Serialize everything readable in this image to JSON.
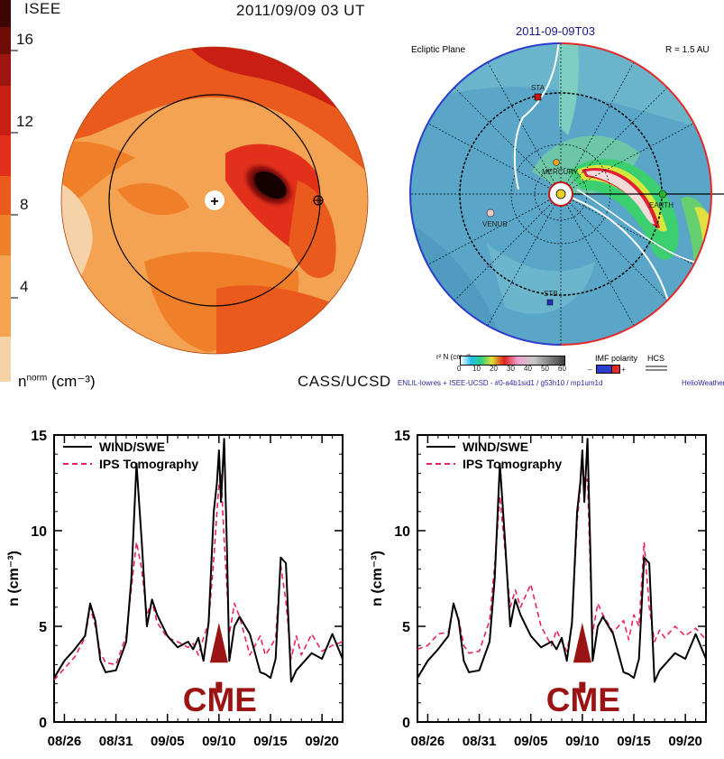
{
  "isee_panel": {
    "header_left": "ISEE",
    "header_right": "2011/09/09 03 UT",
    "colorbar_ticks": [
      "16",
      "12",
      "8",
      "4"
    ],
    "colorbar_label": "n",
    "colorbar_label_sup": "norm",
    "colorbar_unit": "(cm⁻³)",
    "credit": "CASS/UCSD",
    "colors": [
      "#f6d2a8",
      "#f4a352",
      "#f07f2a",
      "#ea5a1c",
      "#e2301a",
      "#c81e14",
      "#9e1410",
      "#6e0c08",
      "#3c0604",
      "#140100"
    ]
  },
  "enlil_panel": {
    "title": "2011-09-09T03",
    "plane_label": "Ecliptic Plane",
    "radius_label": "R = 1.5 AU",
    "bodies": [
      "STA",
      "MERCURY",
      "VENUS",
      "EARTH",
      "STB"
    ],
    "density_label": "r² N (cm⁻³)",
    "density_ticks": [
      "0",
      "10",
      "20",
      "30",
      "40",
      "50",
      "60"
    ],
    "imf_label": "IMF polarity",
    "imf_minus": "–",
    "imf_plus": "+",
    "hcs_label": "HCS",
    "footer_left": "ENLIL-lowres + ISEE-UCSD - #0-a4b1sid1 / g53h10 / mp1um1d",
    "footer_right": "HelioWeather"
  },
  "chart_data": [
    {
      "type": "line",
      "title": "",
      "xlabel": "",
      "ylabel": "n (cm⁻³)",
      "ylim": [
        0,
        15
      ],
      "xlim": [
        0,
        28
      ],
      "yticks": [
        "0",
        "5",
        "10",
        "15"
      ],
      "xtick_positions": [
        1,
        6,
        11,
        16,
        21,
        26
      ],
      "xtick_labels": [
        "08/26",
        "08/31",
        "09/05",
        "09/10",
        "09/15",
        "09/20"
      ],
      "annotation": "CME",
      "annotation_x": 16,
      "series": [
        {
          "name": "WIND/SWE",
          "color": "#000000",
          "style": "solid",
          "x": [
            0,
            1,
            2,
            3,
            3.5,
            4,
            4.5,
            5,
            6,
            7,
            7.5,
            8,
            8.5,
            9,
            9.5,
            10,
            11,
            12,
            13,
            13.5,
            14,
            14.5,
            15,
            15.5,
            15.8,
            16,
            16.2,
            16.5,
            16.8,
            17,
            17.2,
            17.5,
            18,
            19,
            20,
            20.5,
            21,
            21.5,
            22,
            22.5,
            23,
            23.5,
            24,
            25,
            26,
            27,
            28
          ],
          "values": [
            2.3,
            3.2,
            3.8,
            4.5,
            6.2,
            5.3,
            3.2,
            2.6,
            2.7,
            4.2,
            7.5,
            13.5,
            9.5,
            5.0,
            6.4,
            5.6,
            4.5,
            3.9,
            4.2,
            3.8,
            4.4,
            3.2,
            5.2,
            11.0,
            12.5,
            14.2,
            11.5,
            14.8,
            8.5,
            3.2,
            3.9,
            5.0,
            5.5,
            4.6,
            2.6,
            2.5,
            2.3,
            3.3,
            8.6,
            8.3,
            2.1,
            2.7,
            3.0,
            3.6,
            3.3,
            4.6,
            3.3
          ]
        },
        {
          "name": "IPS Tomography",
          "color": "#e8245a",
          "style": "dashed",
          "x": [
            0,
            1,
            2,
            3,
            3.5,
            4,
            4.5,
            5,
            6,
            7,
            7.5,
            8,
            8.5,
            9,
            9.5,
            10,
            11,
            12,
            13,
            13.5,
            14,
            14.5,
            15,
            15.5,
            15.8,
            16,
            16.2,
            16.5,
            16.8,
            17,
            17.2,
            17.5,
            18,
            19,
            20,
            20.5,
            21,
            21.5,
            22,
            22.5,
            23,
            23.5,
            24,
            25,
            26,
            27,
            28
          ],
          "values": [
            2.2,
            2.8,
            3.4,
            4.4,
            6.0,
            5.0,
            3.6,
            3.1,
            3.0,
            4.5,
            7.0,
            9.4,
            8.0,
            5.6,
            6.3,
            5.2,
            4.4,
            4.2,
            3.9,
            4.1,
            3.5,
            4.4,
            5.2,
            8.5,
            11.0,
            12.4,
            13.0,
            9.5,
            6.8,
            4.6,
            5.2,
            6.2,
            5.5,
            3.5,
            4.5,
            3.5,
            3.9,
            4.4,
            8.2,
            6.3,
            3.3,
            4.5,
            3.5,
            4.6,
            3.7,
            4.0,
            4.2
          ]
        }
      ]
    },
    {
      "type": "line",
      "title": "",
      "xlabel": "",
      "ylabel": "n (cm⁻³)",
      "ylim": [
        0,
        15
      ],
      "xlim": [
        0,
        28
      ],
      "yticks": [
        "0",
        "5",
        "10",
        "15"
      ],
      "xtick_positions": [
        1,
        6,
        11,
        16,
        21,
        26
      ],
      "xtick_labels": [
        "08/26",
        "08/31",
        "09/05",
        "09/10",
        "09/15",
        "09/20"
      ],
      "annotation": "CME",
      "annotation_x": 16,
      "series": [
        {
          "name": "WIND/SWE",
          "color": "#000000",
          "style": "solid",
          "x": [
            0,
            1,
            2,
            3,
            3.5,
            4,
            4.5,
            5,
            6,
            7,
            7.5,
            8,
            8.5,
            9,
            9.5,
            10,
            11,
            12,
            13,
            13.5,
            14,
            14.5,
            15,
            15.5,
            15.8,
            16,
            16.2,
            16.5,
            16.8,
            17,
            17.2,
            17.5,
            18,
            19,
            20,
            20.5,
            21,
            21.5,
            22,
            22.5,
            23,
            23.5,
            24,
            25,
            26,
            27,
            28
          ],
          "values": [
            2.3,
            3.2,
            3.8,
            4.5,
            6.2,
            5.3,
            3.2,
            2.6,
            2.7,
            4.2,
            7.5,
            13.5,
            9.5,
            5.0,
            6.4,
            5.6,
            4.5,
            3.9,
            4.2,
            3.8,
            4.4,
            3.2,
            5.2,
            11.0,
            12.5,
            14.2,
            11.5,
            14.8,
            8.5,
            3.2,
            3.9,
            5.0,
            5.5,
            4.6,
            2.6,
            2.5,
            2.3,
            3.3,
            8.6,
            8.3,
            2.1,
            2.7,
            3.0,
            3.6,
            3.3,
            4.6,
            3.3
          ]
        },
        {
          "name": "IPS Tomography",
          "color": "#e8245a",
          "style": "dashed",
          "x": [
            0,
            1,
            2,
            3,
            3.5,
            4,
            4.5,
            5,
            6,
            7,
            7.5,
            8,
            8.5,
            9,
            9.5,
            10,
            11,
            12,
            13,
            13.5,
            14,
            14.5,
            15,
            15.5,
            15.8,
            16,
            16.2,
            16.5,
            16.8,
            17,
            17.2,
            17.5,
            18,
            19,
            20,
            20.5,
            21,
            21.5,
            22,
            22.5,
            23,
            23.5,
            24,
            25,
            26,
            27,
            28
          ],
          "values": [
            3.8,
            4.0,
            4.6,
            4.7,
            6.2,
            5.4,
            4.0,
            3.6,
            3.7,
            5.3,
            8.2,
            11.8,
            9.0,
            6.0,
            6.9,
            6.0,
            7.2,
            5.0,
            4.0,
            4.8,
            4.2,
            3.7,
            5.0,
            10.5,
            12.2,
            13.8,
            12.5,
            12.7,
            7.6,
            4.6,
            5.3,
            6.2,
            5.6,
            4.7,
            5.3,
            4.3,
            5.6,
            5.0,
            9.4,
            6.0,
            4.2,
            4.8,
            4.4,
            5.0,
            4.5,
            4.9,
            4.3
          ]
        }
      ]
    }
  ]
}
